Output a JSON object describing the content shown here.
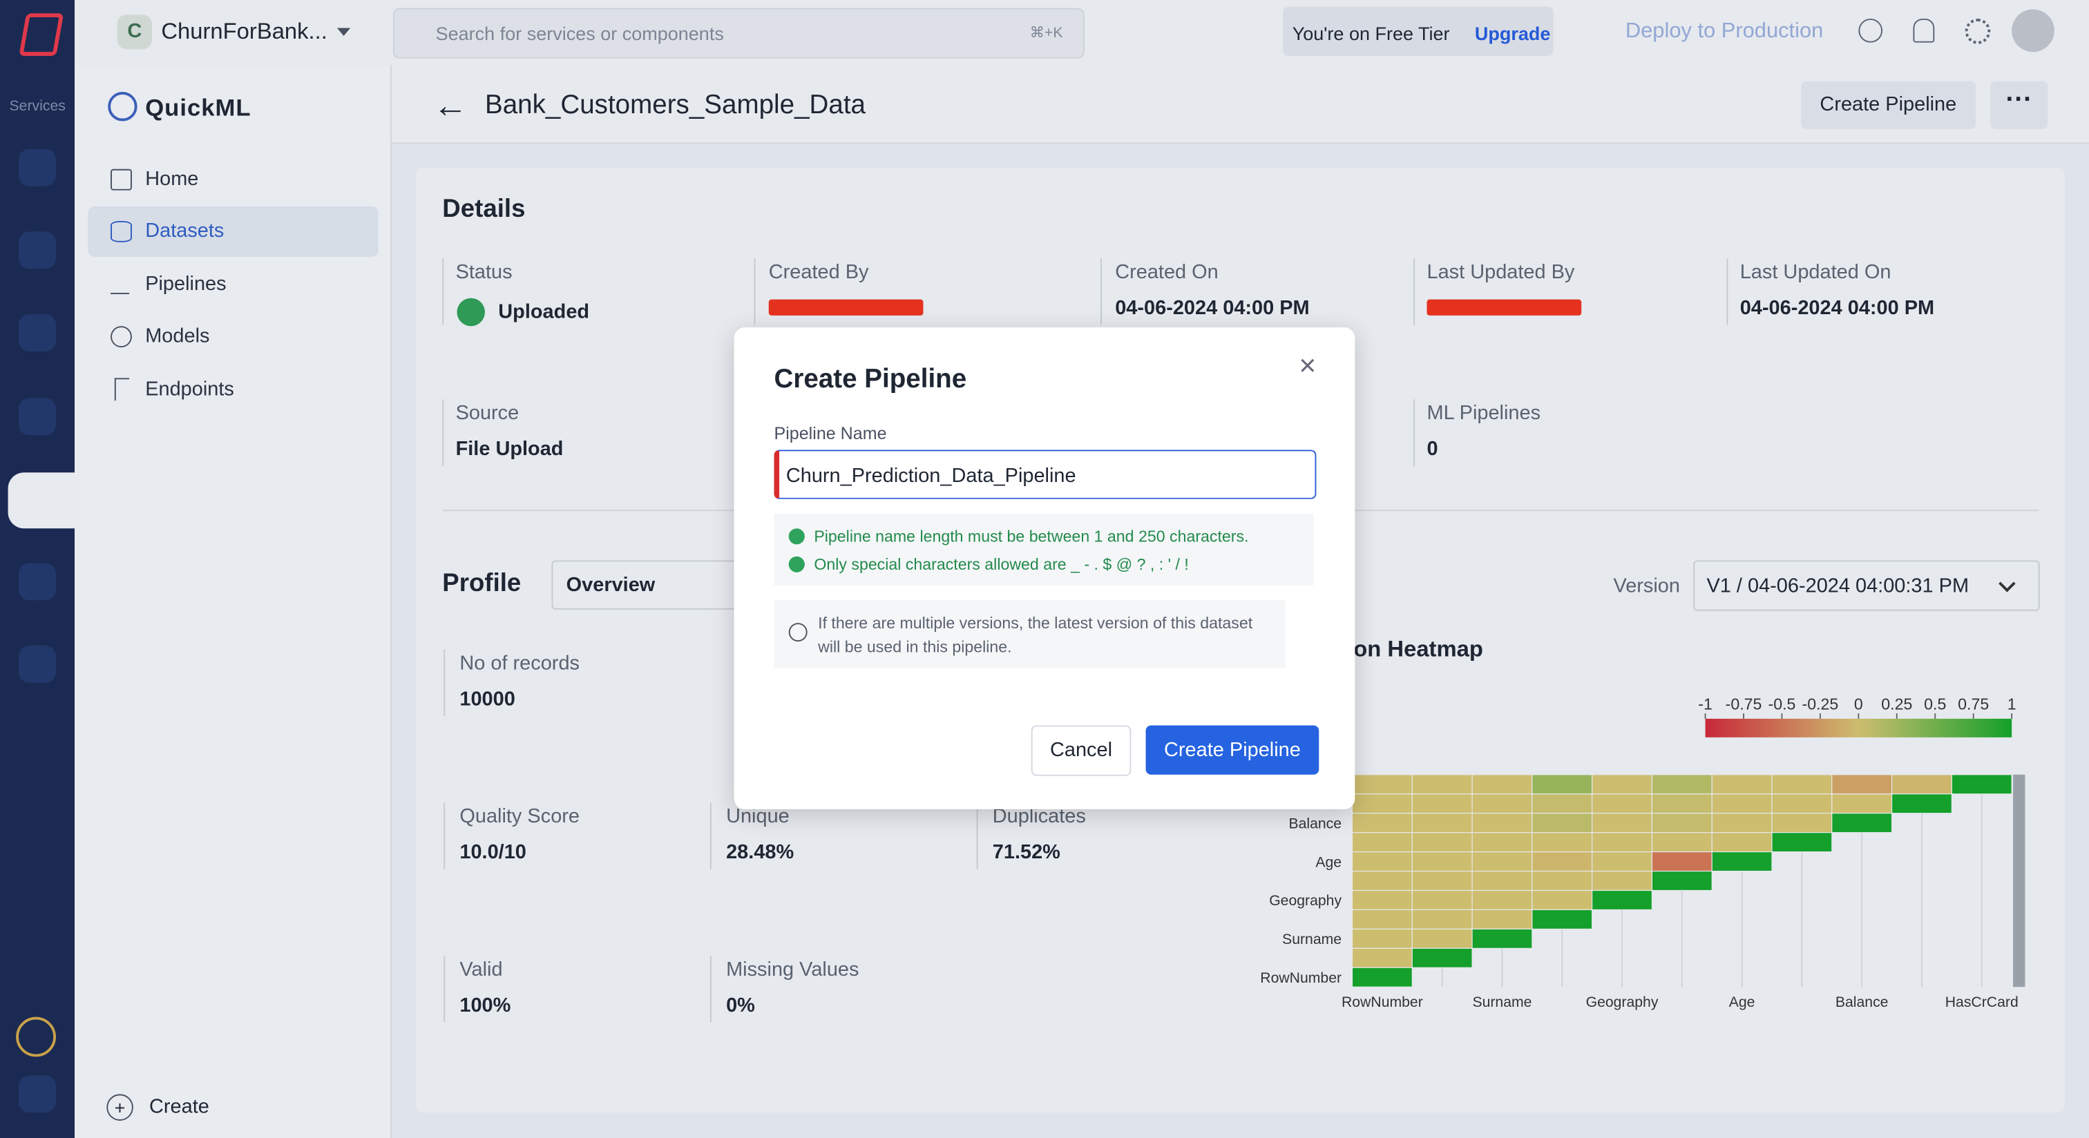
{
  "topbar": {
    "project_initial": "C",
    "project": "ChurnForBank...",
    "search_placeholder": "Search for services or components",
    "shortcut": "⌘+K",
    "tier": "You're on Free Tier",
    "upgrade": "Upgrade",
    "deploy": "Deploy to Production"
  },
  "rail": {
    "label": "Services"
  },
  "sidebar": {
    "app": "QuickML",
    "nav": [
      "Home",
      "Datasets",
      "Pipelines",
      "Models",
      "Endpoints"
    ],
    "create": "Create"
  },
  "header": {
    "title": "Bank_Customers_Sample_Data",
    "button": "Create Pipeline"
  },
  "details": {
    "heading": "Details",
    "status_label": "Status",
    "status": "Uploaded",
    "created_by_label": "Created By",
    "created_on_label": "Created On",
    "created_on": "04-06-2024 04:00 PM",
    "updated_by_label": "Last Updated By",
    "updated_on_label": "Last Updated On",
    "updated_on": "04-06-2024 04:00 PM",
    "source_label": "Source",
    "source": "File Upload",
    "pipelines_label": "ML Pipelines",
    "pipelines": "0"
  },
  "profile": {
    "heading": "Profile",
    "view": "Overview",
    "version_label": "Version",
    "version": "V1 / 04-06-2024 04:00:31 PM",
    "stats": [
      {
        "label": "No of records",
        "value": "10000"
      },
      {
        "label": "Quality Score",
        "value": "10.0/10"
      },
      {
        "label": "Unique",
        "value": "28.48%"
      },
      {
        "label": "Duplicates",
        "value": "71.52%"
      },
      {
        "label": "Valid",
        "value": "100%"
      },
      {
        "label": "Missing Values",
        "value": "0%"
      }
    ]
  },
  "heatmap": {
    "title": "Correlation Heatmap",
    "colorbar_ticks": [
      -1,
      -0.75,
      -0.5,
      -0.25,
      0,
      0.25,
      0.5,
      0.75,
      1
    ],
    "colors": {
      "negative": "#c8283a",
      "zero": "#cdbd6f",
      "positive": "#14a02a"
    },
    "rows": [
      null,
      null,
      "Balance",
      null,
      "Age",
      null,
      "Geography",
      null,
      "Surname",
      null,
      "RowNumber"
    ],
    "columns": [
      "RowNumber",
      null,
      "Surname",
      null,
      "Geography",
      null,
      "Age",
      null,
      "Balance",
      null,
      "HasCrCard"
    ],
    "values": [
      [
        0,
        0,
        0,
        0.3,
        0,
        0.15,
        0,
        0,
        -0.2,
        -0.05,
        1
      ],
      [
        0,
        0,
        0,
        0.05,
        0,
        0.05,
        0,
        0,
        0,
        1,
        null
      ],
      [
        0,
        0,
        0,
        0.1,
        0,
        0.05,
        0,
        0,
        1,
        null,
        null
      ],
      [
        0,
        0,
        0,
        0,
        0,
        0,
        0,
        1,
        null,
        null,
        null
      ],
      [
        0,
        0,
        0,
        -0.05,
        0,
        -0.5,
        1,
        null,
        null,
        null,
        null
      ],
      [
        0,
        0,
        0,
        0,
        0,
        1,
        null,
        null,
        null,
        null,
        null
      ],
      [
        0,
        0,
        0,
        0,
        1,
        null,
        null,
        null,
        null,
        null,
        null
      ],
      [
        0,
        0,
        0,
        1,
        null,
        null,
        null,
        null,
        null,
        null,
        null
      ],
      [
        0,
        0,
        1,
        null,
        null,
        null,
        null,
        null,
        null,
        null,
        null
      ],
      [
        0,
        1,
        null,
        null,
        null,
        null,
        null,
        null,
        null,
        null,
        null
      ],
      [
        1,
        null,
        null,
        null,
        null,
        null,
        null,
        null,
        null,
        null,
        null
      ]
    ]
  },
  "modal": {
    "title": "Create Pipeline",
    "label": "Pipeline Name",
    "input": "Churn_Prediction_Data_Pipeline",
    "rules": [
      "Pipeline name length must be between 1 and 250 characters.",
      "Only special characters allowed are _ - . $ @ ? , : ' / !"
    ],
    "info": "If there are multiple versions, the latest version of this dataset will be used in this pipeline.",
    "cancel": "Cancel",
    "submit": "Create Pipeline"
  }
}
